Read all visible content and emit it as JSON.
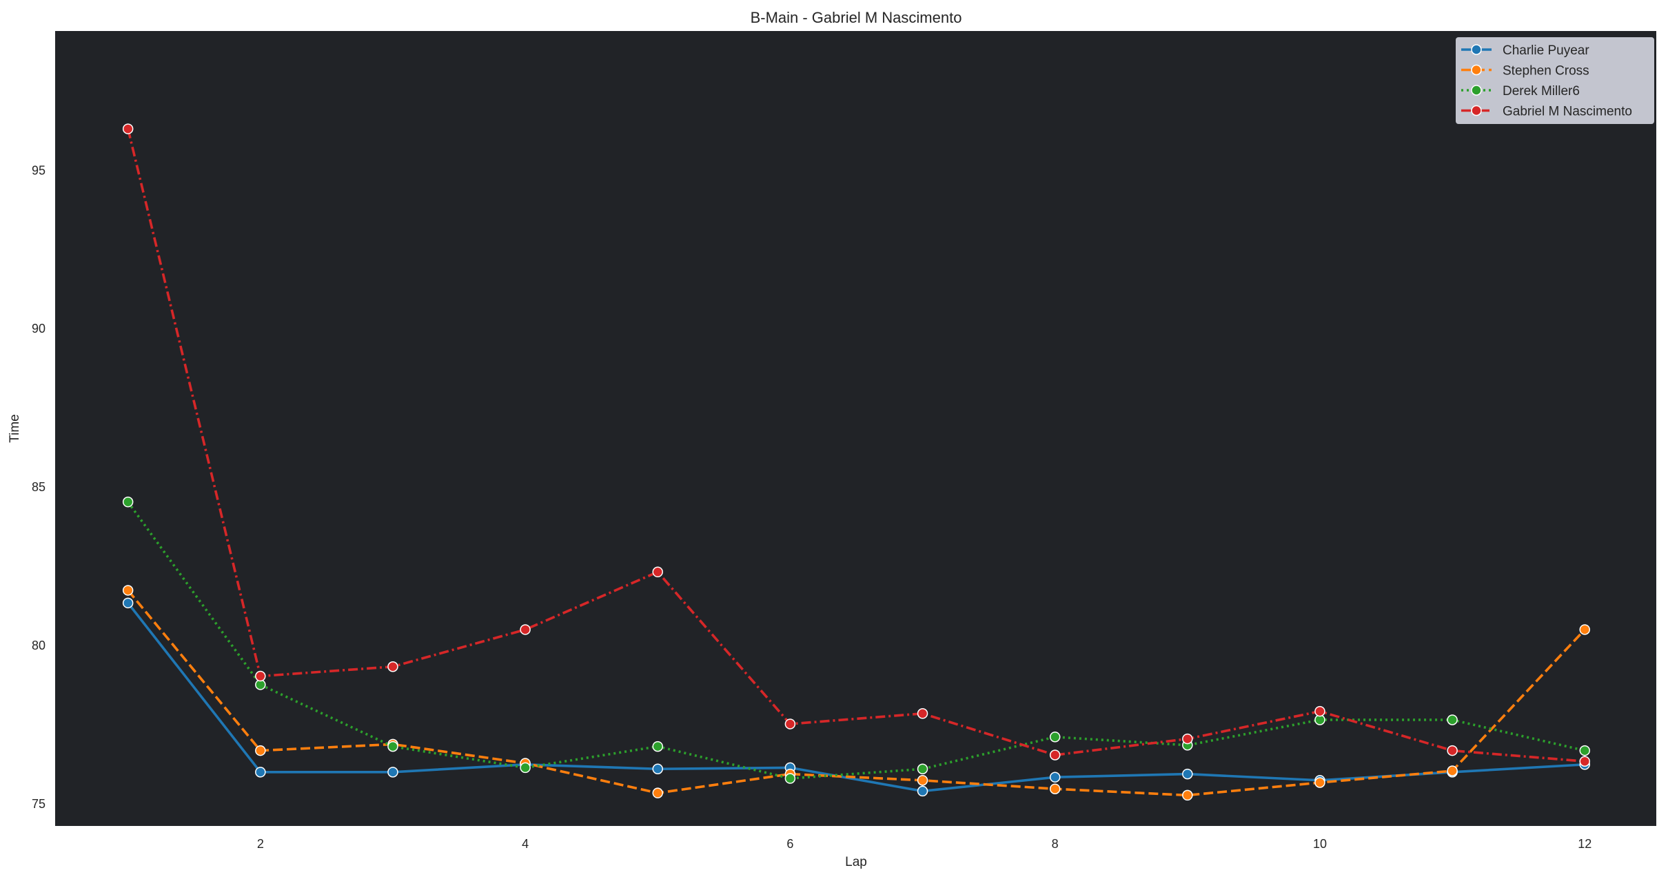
{
  "chart_data": {
    "type": "line",
    "title": "B-Main - Gabriel M Nascimento",
    "xlabel": "Lap",
    "ylabel": "Time",
    "x": [
      1,
      2,
      3,
      4,
      5,
      6,
      7,
      8,
      9,
      10,
      11,
      12
    ],
    "xlim": [
      0.45,
      12.54
    ],
    "ylim": [
      74.3,
      99.4
    ],
    "xticks": [
      2,
      4,
      6,
      8,
      10,
      12
    ],
    "yticks": [
      75,
      80,
      85,
      90,
      95
    ],
    "grid": false,
    "legend_position": "top-right",
    "background_color": "#212327",
    "legend_background": "#c3c5cf",
    "series": [
      {
        "name": "Charlie Puyear",
        "color": "#1f77b4",
        "linestyle": "solid",
        "values": [
          81.34,
          76.0,
          76.0,
          76.24,
          76.1,
          76.14,
          75.4,
          75.84,
          75.94,
          75.74,
          76.0,
          76.24
        ]
      },
      {
        "name": "Stephen Cross",
        "color": "#ff7f0e",
        "linestyle": "dashed",
        "values": [
          81.74,
          76.68,
          76.88,
          76.28,
          75.34,
          75.94,
          75.74,
          75.47,
          75.27,
          75.67,
          76.04,
          80.5
        ]
      },
      {
        "name": "Derek Miller6",
        "color": "#2ca02c",
        "linestyle": "dotted",
        "values": [
          84.53,
          78.76,
          76.81,
          76.14,
          76.81,
          75.8,
          76.1,
          77.11,
          76.85,
          77.65,
          77.65,
          76.68
        ]
      },
      {
        "name": "Gabriel M Nascimento",
        "color": "#d62728",
        "linestyle": "dashdot",
        "values": [
          96.31,
          79.03,
          79.33,
          80.5,
          82.32,
          77.52,
          77.85,
          76.54,
          77.05,
          77.92,
          76.68,
          76.34
        ]
      }
    ]
  }
}
